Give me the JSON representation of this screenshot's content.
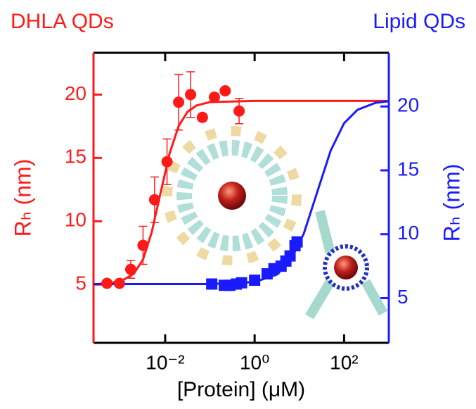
{
  "chart_data": {
    "type": "scatter",
    "x_label": "[Protein] (μM)",
    "y_label": "Rₕ (nm)",
    "y2_label": "Rₕ (nm)",
    "xscale": "log",
    "xlim": [
      0.00025,
      1000
    ],
    "xticks": [
      {
        "value": 0.01,
        "label": "10⁻²"
      },
      {
        "value": 1,
        "label": "10⁰"
      },
      {
        "value": 100,
        "label": "10²"
      }
    ],
    "ylim": [
      0.4,
      23.3
    ],
    "yticks": [
      5,
      10,
      15,
      20
    ],
    "y2lim": [
      1.5,
      24.2
    ],
    "y2ticks": [
      5,
      10,
      15,
      20
    ],
    "series": [
      {
        "name": "DHLA QDs",
        "color": "#ff1a1a",
        "axis": "y",
        "marker": "circle",
        "x": [
          0.0005,
          0.00095,
          0.0017,
          0.0032,
          0.0058,
          0.011,
          0.02,
          0.037,
          0.068,
          0.126,
          0.22,
          0.45
        ],
        "values": [
          5.1,
          5.1,
          6.2,
          8.1,
          11.7,
          14.7,
          19.4,
          20.0,
          18.2,
          19.8,
          20.3,
          18.7
        ],
        "errors": [
          0.2,
          0.2,
          0.7,
          1.5,
          1.8,
          1.8,
          2.2,
          1.8,
          0.3,
          0.3,
          0.2,
          1.0
        ]
      },
      {
        "name": "Lipid QDs",
        "color": "#1a1aff",
        "axis": "y2",
        "marker": "square",
        "x": [
          0.11,
          0.21,
          0.28,
          0.39,
          0.51,
          1.0,
          1.9,
          2.7,
          3.9,
          5.0,
          6.2,
          8.0,
          8.9
        ],
        "values": [
          6.1,
          6.0,
          6.0,
          6.1,
          6.2,
          6.4,
          6.9,
          7.3,
          7.5,
          7.9,
          8.3,
          9.1,
          9.4
        ]
      }
    ],
    "fits": [
      {
        "color": "#ff1a1a",
        "axis": "y",
        "x": [
          0.00025,
          0.001,
          0.002,
          0.0032,
          0.005,
          0.0079,
          0.0126,
          0.02,
          0.0316,
          0.05,
          0.1,
          1,
          1000
        ],
        "values": [
          5.01,
          5.23,
          5.86,
          6.99,
          9.13,
          12.25,
          15.37,
          17.51,
          18.64,
          19.14,
          19.41,
          19.5,
          19.5
        ]
      },
      {
        "color": "#1a1aff",
        "axis": "y2",
        "x": [
          0.00025,
          0.1,
          1,
          3.16,
          6.3,
          12.6,
          25.1,
          50.1,
          100,
          200,
          501,
          1000
        ],
        "values": [
          6.1,
          6.1,
          6.26,
          6.85,
          7.92,
          10.06,
          13.3,
          16.54,
          18.69,
          19.74,
          20.28,
          20.41
        ]
      }
    ]
  }
}
